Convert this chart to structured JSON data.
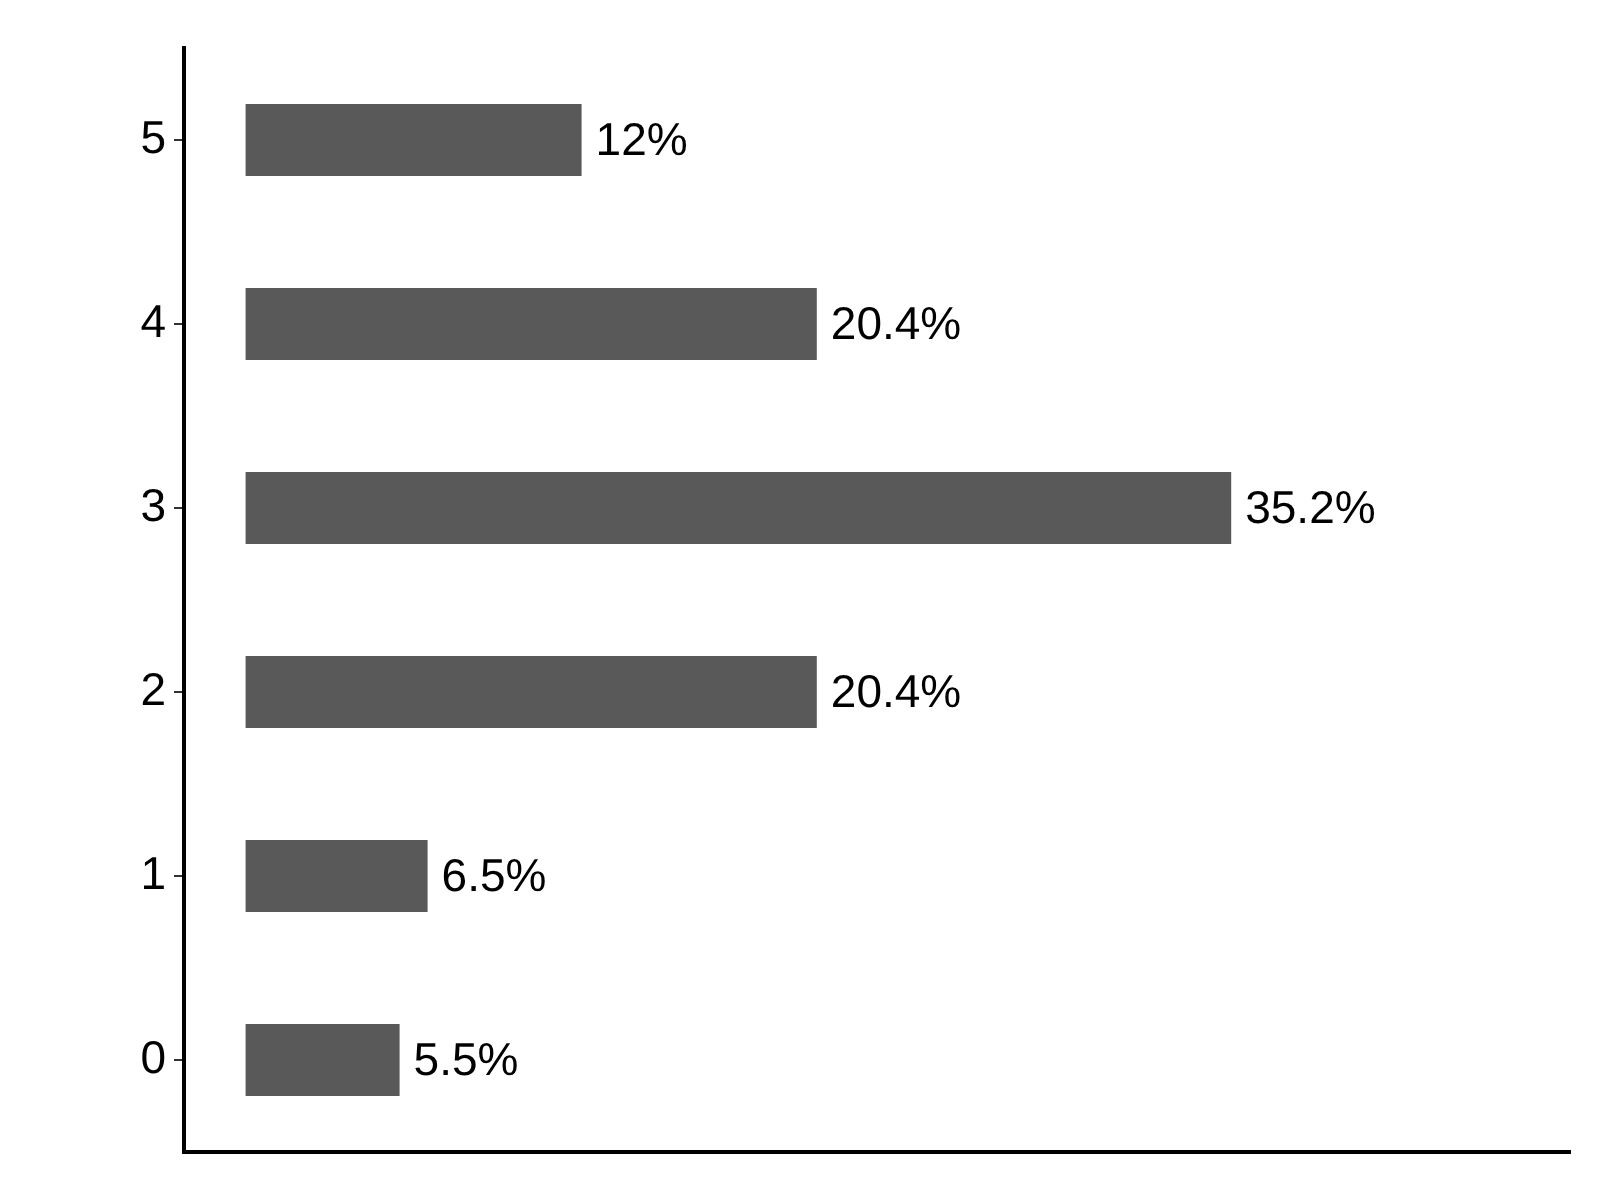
{
  "chart_data": {
    "type": "bar",
    "orientation": "horizontal",
    "categories": [
      "5",
      "4",
      "3",
      "2",
      "1",
      "0"
    ],
    "values": [
      12,
      20.4,
      35.2,
      20.4,
      6.5,
      5.5
    ],
    "color": "#595959",
    "value_labels": [
      "12%",
      "20.4%",
      "35.2%",
      "20.4%",
      "6.5%",
      "5.5%"
    ],
    "xlim": [
      -2.2,
      47.3
    ],
    "tick_labels": "y",
    "grid": false,
    "legend": false
  }
}
